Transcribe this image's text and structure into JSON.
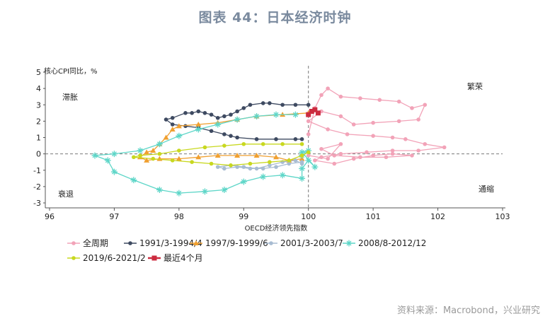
{
  "chart_data": {
    "type": "line",
    "title": "图表 44：日本经济时钟",
    "xlabel": "OECD经济领先指数",
    "ylabel": "核心CPI同比，%",
    "xlim": [
      96,
      103
    ],
    "ylim": [
      -3,
      5
    ],
    "x_ticks": [
      "96",
      "97",
      "98",
      "99",
      "100",
      "101",
      "102",
      "103"
    ],
    "y_ticks": [
      "-3",
      "-2",
      "-1",
      "0",
      "1",
      "2",
      "3",
      "4",
      "5"
    ],
    "reference_lines": {
      "x": 100,
      "y": 0
    },
    "quadrants": [
      "滞胀",
      "繁荣",
      "衰退",
      "通缩"
    ],
    "series": [
      {
        "name": "全周期",
        "color": "#f2a3b8",
        "marker": "dot",
        "points": [
          [
            100.0,
            1.2
          ],
          [
            100.1,
            2.8
          ],
          [
            100.2,
            3.6
          ],
          [
            100.3,
            4.0
          ],
          [
            100.5,
            3.5
          ],
          [
            100.8,
            3.4
          ],
          [
            101.1,
            3.3
          ],
          [
            101.4,
            3.2
          ],
          [
            101.6,
            2.8
          ],
          [
            101.8,
            3.0
          ],
          [
            101.7,
            2.1
          ],
          [
            101.4,
            2.0
          ],
          [
            101.0,
            1.9
          ],
          [
            100.7,
            1.8
          ],
          [
            100.5,
            2.3
          ],
          [
            100.2,
            2.6
          ],
          [
            100.0,
            2.0
          ],
          [
            100.3,
            1.5
          ],
          [
            100.6,
            1.2
          ],
          [
            101.0,
            1.1
          ],
          [
            101.3,
            1.0
          ],
          [
            101.5,
            0.9
          ],
          [
            101.8,
            0.6
          ],
          [
            102.1,
            0.4
          ],
          [
            101.7,
            0.2
          ],
          [
            101.3,
            0.2
          ],
          [
            100.9,
            0.1
          ],
          [
            100.5,
            0.0
          ],
          [
            100.2,
            -0.2
          ],
          [
            100.1,
            -0.4
          ],
          [
            100.4,
            -0.6
          ],
          [
            100.7,
            -0.3
          ],
          [
            101.0,
            -0.1
          ],
          [
            101.3,
            0.0
          ],
          [
            101.6,
            -0.1
          ],
          [
            101.2,
            -0.2
          ],
          [
            100.8,
            -0.2
          ],
          [
            100.4,
            -0.1
          ],
          [
            100.2,
            0.3
          ],
          [
            100.5,
            0.6
          ],
          [
            100.3,
            -0.3
          ],
          [
            100.0,
            -0.1
          ]
        ]
      },
      {
        "name": "1991/3-1994/4",
        "color": "#3e4a61",
        "marker": "dot",
        "points": [
          [
            100.0,
            3.0
          ],
          [
            99.8,
            3.0
          ],
          [
            99.6,
            3.0
          ],
          [
            99.4,
            3.1
          ],
          [
            99.3,
            3.1
          ],
          [
            99.1,
            3.0
          ],
          [
            99.0,
            2.8
          ],
          [
            98.9,
            2.6
          ],
          [
            98.8,
            2.4
          ],
          [
            98.7,
            2.3
          ],
          [
            98.6,
            2.2
          ],
          [
            98.5,
            2.4
          ],
          [
            98.4,
            2.5
          ],
          [
            98.3,
            2.6
          ],
          [
            98.2,
            2.5
          ],
          [
            98.1,
            2.5
          ],
          [
            97.9,
            2.2
          ],
          [
            97.8,
            2.1
          ],
          [
            97.9,
            1.8
          ],
          [
            98.1,
            1.7
          ],
          [
            98.3,
            1.6
          ],
          [
            98.5,
            1.4
          ],
          [
            98.7,
            1.2
          ],
          [
            98.8,
            1.1
          ],
          [
            98.9,
            1.0
          ],
          [
            99.2,
            0.9
          ],
          [
            99.5,
            0.9
          ],
          [
            99.8,
            0.9
          ],
          [
            99.9,
            0.9
          ]
        ]
      },
      {
        "name": "1997/9-1999/6",
        "color": "#f0a030",
        "marker": "triangle",
        "points": [
          [
            100.0,
            2.5
          ],
          [
            99.6,
            2.4
          ],
          [
            99.2,
            2.3
          ],
          [
            98.9,
            2.1
          ],
          [
            98.6,
            1.9
          ],
          [
            98.3,
            1.8
          ],
          [
            98.0,
            1.7
          ],
          [
            97.9,
            1.5
          ],
          [
            97.8,
            1.0
          ],
          [
            97.7,
            0.6
          ],
          [
            97.6,
            0.2
          ],
          [
            97.5,
            0.1
          ],
          [
            97.4,
            -0.2
          ],
          [
            97.5,
            -0.4
          ],
          [
            97.7,
            -0.3
          ],
          [
            98.0,
            -0.3
          ],
          [
            98.3,
            -0.2
          ],
          [
            98.6,
            -0.1
          ],
          [
            98.9,
            -0.1
          ],
          [
            99.2,
            -0.1
          ],
          [
            99.5,
            -0.2
          ],
          [
            99.7,
            -0.4
          ],
          [
            99.9,
            -0.3
          ]
        ]
      },
      {
        "name": "2001/3-2003/7",
        "color": "#a8bcd2",
        "marker": "dot",
        "points": [
          [
            99.9,
            -0.5
          ],
          [
            99.7,
            -0.6
          ],
          [
            99.5,
            -0.8
          ],
          [
            99.3,
            -0.9
          ],
          [
            99.1,
            -0.9
          ],
          [
            98.9,
            -0.8
          ],
          [
            98.7,
            -0.9
          ],
          [
            98.6,
            -0.8
          ],
          [
            98.8,
            -0.7
          ],
          [
            99.0,
            -0.8
          ],
          [
            99.2,
            -0.9
          ],
          [
            99.4,
            -0.7
          ],
          [
            99.6,
            -0.5
          ],
          [
            99.8,
            -0.4
          ],
          [
            99.9,
            -0.6
          ]
        ]
      },
      {
        "name": "2008/8-2012/12",
        "color": "#5ed6c8",
        "marker": "star",
        "points": [
          [
            99.8,
            2.4
          ],
          [
            99.5,
            2.4
          ],
          [
            99.2,
            2.3
          ],
          [
            98.9,
            2.1
          ],
          [
            98.6,
            1.8
          ],
          [
            98.3,
            1.5
          ],
          [
            98.0,
            1.1
          ],
          [
            97.7,
            0.6
          ],
          [
            97.4,
            0.2
          ],
          [
            97.0,
            0.0
          ],
          [
            96.7,
            -0.1
          ],
          [
            96.9,
            -0.4
          ],
          [
            97.0,
            -1.1
          ],
          [
            97.3,
            -1.6
          ],
          [
            97.7,
            -2.2
          ],
          [
            98.0,
            -2.4
          ],
          [
            98.4,
            -2.3
          ],
          [
            98.7,
            -2.2
          ],
          [
            99.0,
            -1.7
          ],
          [
            99.3,
            -1.4
          ],
          [
            99.6,
            -1.3
          ],
          [
            99.9,
            -1.5
          ],
          [
            99.9,
            -0.9
          ],
          [
            100.0,
            -0.4
          ],
          [
            100.1,
            -0.8
          ],
          [
            99.9,
            0.1
          ],
          [
            100.0,
            0.2
          ],
          [
            99.9,
            -0.1
          ]
        ]
      },
      {
        "name": "2019/6-2021/2",
        "color": "#c8d81f",
        "marker": "dot",
        "points": [
          [
            99.9,
            0.6
          ],
          [
            99.6,
            0.6
          ],
          [
            99.3,
            0.6
          ],
          [
            99.0,
            0.6
          ],
          [
            98.7,
            0.5
          ],
          [
            98.4,
            0.4
          ],
          [
            98.0,
            0.2
          ],
          [
            97.7,
            0.0
          ],
          [
            97.4,
            -0.1
          ],
          [
            97.3,
            -0.2
          ],
          [
            97.6,
            -0.3
          ],
          [
            97.9,
            -0.4
          ],
          [
            98.2,
            -0.5
          ],
          [
            98.5,
            -0.6
          ],
          [
            98.8,
            -0.7
          ],
          [
            99.1,
            -0.6
          ],
          [
            99.4,
            -0.5
          ],
          [
            99.7,
            -0.4
          ],
          [
            99.9,
            -0.1
          ],
          [
            100.0,
            0.1
          ]
        ]
      },
      {
        "name": "最近4个月",
        "color": "#cc2b3f",
        "marker": "square",
        "points": [
          [
            100.0,
            2.4
          ],
          [
            100.05,
            2.6
          ],
          [
            100.1,
            2.7
          ],
          [
            100.15,
            2.5
          ]
        ]
      }
    ]
  },
  "source": "资料来源：Macrobond，兴业研究"
}
